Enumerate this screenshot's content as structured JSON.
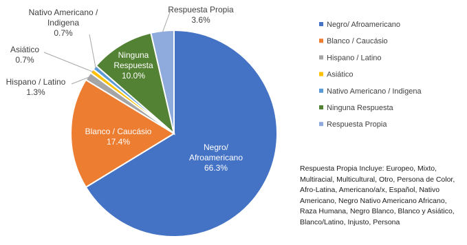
{
  "chart_data": {
    "type": "pie",
    "categories": [
      "Negro/ Afroamericano",
      "Blanco / Caucásio",
      "Hispano / Latino",
      "Asiático",
      "Nativo Americano / Indigena",
      "Ninguna Respuesta",
      "Respuesta Propia"
    ],
    "values": [
      66.3,
      17.4,
      1.3,
      0.7,
      0.7,
      10.0,
      3.6
    ],
    "value_labels": [
      "66.3%",
      "17.4%",
      "1.3%",
      "0.7%",
      "0.7%",
      "10.0%",
      "3.6%"
    ],
    "slice_labels": [
      [
        "Negro/",
        "Afroamericano"
      ],
      [
        "Blanco / Caucásio"
      ],
      [
        "Hispano / Latino"
      ],
      [
        "Asiático"
      ],
      [
        "Nativo Americano /",
        "Indigena"
      ],
      [
        "Ninguna",
        "Respuesta"
      ],
      [
        "Respuesta Propia"
      ]
    ],
    "legend": [
      "Negro/ Afroamericano",
      "Blanco / Caucásio",
      "Hispano / Latino",
      "Asiático",
      "Nativo Americano / Indigena",
      "Ninguna Respuesta",
      "Respuesta Propia"
    ],
    "legend_position": "right",
    "colors": [
      "#4472C4",
      "#ED7D31",
      "#A5A5A5",
      "#FFC000",
      "#5B9BD5",
      "#548235",
      "#8FAADC"
    ],
    "title": ""
  },
  "note": "Respuesta Propia Incluye: Europeo, Mixto, Multiracial, Multicultural, Otro, Persona de Color, Afro-Latina, Americano/a/x, Español, Nativo Americano, Negro Nativo Americano Africano, Raza Humana, Negro Blanco, Blanco y Asiático, Blanco/Latino, Injusto, Persona"
}
